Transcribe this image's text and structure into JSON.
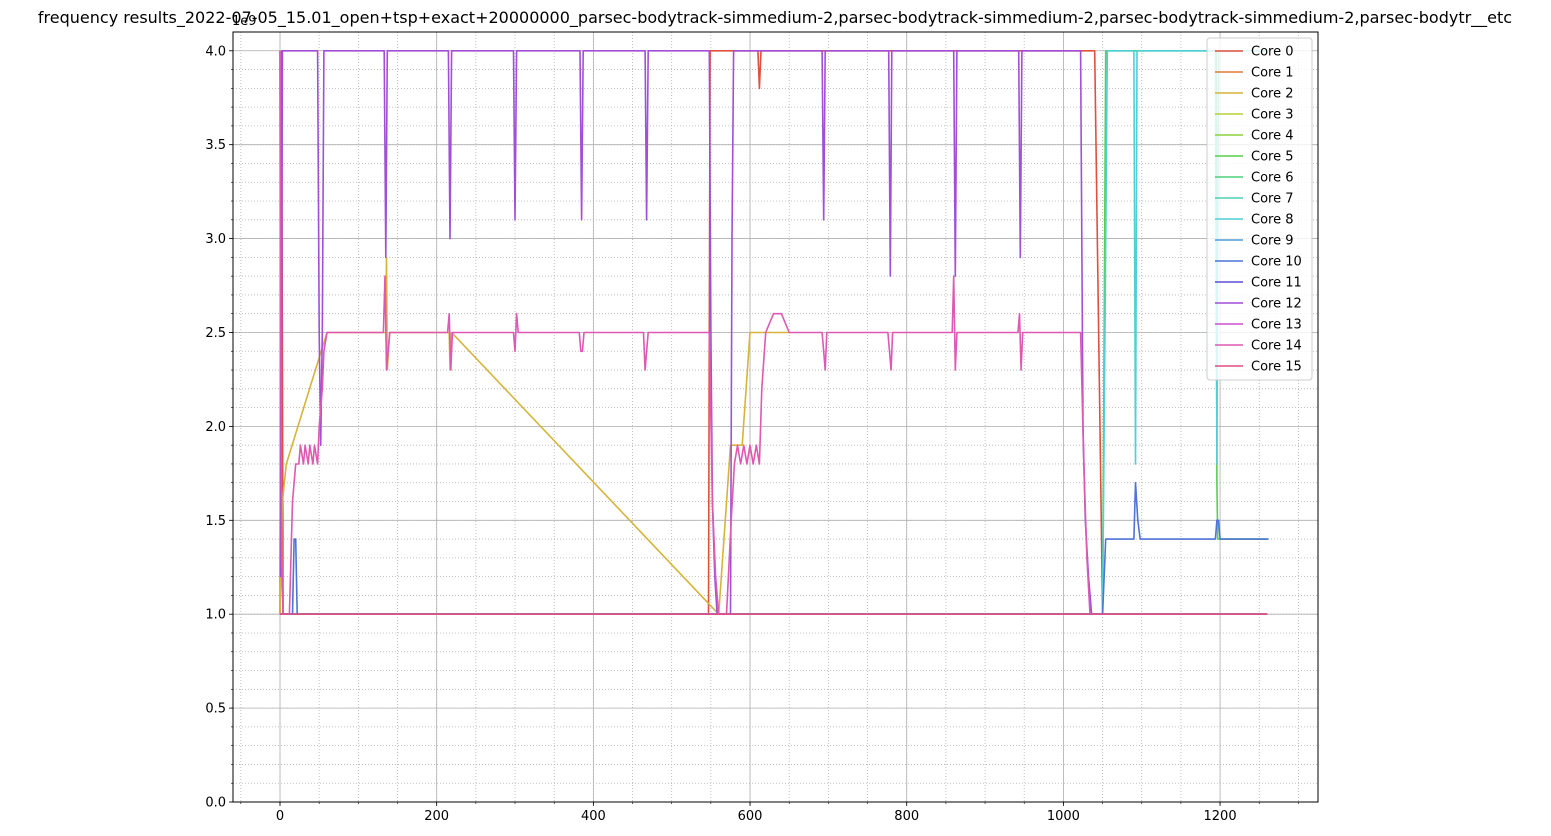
{
  "chart_data": {
    "type": "line",
    "title": "frequency results_2022-07-05_15.01_open+tsp+exact+20000000_parsec-bodytrack-simmedium-2,parsec-bodytrack-simmedium-2,parsec-bodytrack-simmedium-2,parsec-bodytr__etc",
    "xlabel": "",
    "ylabel": "",
    "y_offset_text": "1e9",
    "xlim": [
      -60,
      1325
    ],
    "ylim": [
      0.0,
      4.1
    ],
    "x_ticks": [
      0,
      200,
      400,
      600,
      800,
      1000,
      1200
    ],
    "x_tick_labels": [
      "0",
      "200",
      "400",
      "600",
      "800",
      "1000",
      "1200"
    ],
    "y_ticks": [
      0.0,
      0.5,
      1.0,
      1.5,
      2.0,
      2.5,
      3.0,
      3.5,
      4.0
    ],
    "y_tick_labels": [
      "0.0",
      "0.5",
      "1.0",
      "1.5",
      "2.0",
      "2.5",
      "3.0",
      "3.5",
      "4.0"
    ],
    "grid": "major solid, minor dotted",
    "legend_position": "top-right",
    "series": [
      {
        "name": "Core 0",
        "color": "#e04f3f",
        "x": [
          0,
          2,
          4,
          547,
          549,
          560,
          580,
          610,
          612,
          614,
          1040,
          1050,
          1260
        ],
        "y": [
          1.0,
          4.0,
          1.0,
          1.0,
          4.0,
          4.0,
          4.0,
          4.0,
          3.8,
          4.0,
          4.0,
          1.0,
          1.0
        ]
      },
      {
        "name": "Core 1",
        "color": "#e07a3f",
        "x": [
          0,
          2,
          4,
          1260
        ],
        "y": [
          1.0,
          1.6,
          1.0,
          1.0
        ]
      },
      {
        "name": "Core 2",
        "color": "#d6b43a",
        "x": [
          0,
          3,
          8,
          60,
          135,
          136,
          137,
          140,
          216,
          217,
          218,
          219,
          560,
          575,
          590,
          600,
          610,
          620,
          630,
          650
        ],
        "y": [
          1.0,
          1.6,
          1.8,
          2.5,
          2.5,
          2.9,
          2.3,
          2.5,
          2.5,
          2.3,
          2.4,
          2.5,
          1.0,
          1.9,
          1.9,
          2.5,
          2.5,
          2.5,
          2.5,
          2.5
        ]
      },
      {
        "name": "Core 3",
        "color": "#b7d13a",
        "x": [
          0,
          1260
        ],
        "y": [
          1.0,
          1.0
        ]
      },
      {
        "name": "Core 4",
        "color": "#8ed13f",
        "x": [
          0,
          1260
        ],
        "y": [
          1.0,
          1.0
        ]
      },
      {
        "name": "Core 5",
        "color": "#55d14a",
        "x": [
          0,
          1050,
          1054,
          1056,
          1195,
          1196,
          1197,
          1198,
          1260
        ],
        "y": [
          1.0,
          1.0,
          4.0,
          4.0,
          4.0,
          1.7,
          1.4,
          1.4,
          1.4
        ]
      },
      {
        "name": "Core 6",
        "color": "#4fd17a",
        "x": [
          0,
          1260
        ],
        "y": [
          1.0,
          1.0
        ]
      },
      {
        "name": "Core 7",
        "color": "#4fd1b0",
        "x": [
          0,
          1260
        ],
        "y": [
          1.0,
          1.0
        ]
      },
      {
        "name": "Core 8",
        "color": "#4fcfd6",
        "x": [
          0,
          1050,
          1056,
          1090,
          1092,
          1094,
          1194,
          1196,
          1198,
          1260
        ],
        "y": [
          1.0,
          1.0,
          4.0,
          4.0,
          1.8,
          4.0,
          4.0,
          1.8,
          4.0,
          4.0
        ]
      },
      {
        "name": "Core 9",
        "color": "#4f9bd6",
        "x": [
          0,
          1260
        ],
        "y": [
          1.0,
          1.0
        ]
      },
      {
        "name": "Core 10",
        "color": "#4f73d6",
        "x": [
          0,
          16,
          18,
          20,
          22,
          1050,
          1054,
          1090,
          1092,
          1095,
          1098,
          1194,
          1196,
          1198,
          1200,
          1262
        ],
        "y": [
          1.0,
          1.0,
          1.4,
          1.4,
          1.0,
          1.0,
          1.4,
          1.4,
          1.7,
          1.5,
          1.4,
          1.4,
          1.5,
          1.5,
          1.4,
          1.4
        ]
      },
      {
        "name": "Core 11",
        "color": "#5b4fd6",
        "x": [
          0,
          1260
        ],
        "y": [
          1.0,
          1.0
        ]
      },
      {
        "name": "Core 12",
        "color": "#a04fd6",
        "x": [
          0,
          1,
          3,
          48,
          50,
          52,
          54,
          56,
          58,
          133,
          135,
          137,
          139,
          215,
          217,
          219,
          298,
          300,
          302,
          383,
          385,
          387,
          466,
          468,
          470,
          548,
          550,
          552,
          555,
          558,
          560,
          575,
          577,
          579,
          692,
          694,
          696,
          777,
          779,
          781,
          860,
          862,
          864,
          943,
          945,
          947,
          1022,
          1025,
          1028,
          1032,
          1036,
          1040
        ],
        "y": [
          4.0,
          1.2,
          4.0,
          4.0,
          2.5,
          1.9,
          2.5,
          4.0,
          4.0,
          4.0,
          2.9,
          4.0,
          4.0,
          4.0,
          3.0,
          4.0,
          4.0,
          3.1,
          4.0,
          4.0,
          3.1,
          4.0,
          4.0,
          3.1,
          4.0,
          4.0,
          2.5,
          1.6,
          1.2,
          1.0,
          1.0,
          1.0,
          3.0,
          4.0,
          4.0,
          3.1,
          4.0,
          4.0,
          2.8,
          4.0,
          4.0,
          2.8,
          4.0,
          4.0,
          2.9,
          4.0,
          4.0,
          2.0,
          1.5,
          1.2,
          1.0,
          1.0
        ]
      },
      {
        "name": "Core 13",
        "color": "#d14fcf",
        "x": [
          0,
          1260
        ],
        "y": [
          1.0,
          1.0
        ]
      },
      {
        "name": "Core 14",
        "color": "#dd59b2",
        "x": [
          0,
          2,
          4,
          8,
          12,
          16,
          20,
          24,
          26,
          30,
          32,
          36,
          38,
          42,
          44,
          48,
          50,
          54,
          56,
          60,
          132,
          134,
          136,
          138,
          140,
          214,
          216,
          218,
          220,
          298,
          300,
          302,
          304,
          382,
          384,
          386,
          388,
          464,
          466,
          468,
          470,
          548,
          552,
          556,
          560,
          570,
          576,
          580,
          584,
          588,
          592,
          596,
          600,
          604,
          608,
          612,
          615,
          620,
          630,
          640,
          650,
          692,
          694,
          696,
          698,
          776,
          778,
          780,
          782,
          858,
          860,
          862,
          864,
          942,
          944,
          946,
          948,
          1022,
          1026,
          1030,
          1034,
          1038,
          1040,
          1260
        ],
        "y": [
          4.0,
          1.3,
          1.0,
          1.0,
          1.0,
          1.6,
          1.8,
          1.8,
          1.9,
          1.8,
          1.9,
          1.8,
          1.9,
          1.8,
          1.9,
          1.8,
          2.0,
          2.2,
          2.4,
          2.5,
          2.5,
          2.8,
          2.3,
          2.4,
          2.5,
          2.5,
          2.6,
          2.3,
          2.5,
          2.5,
          2.4,
          2.6,
          2.5,
          2.5,
          2.4,
          2.4,
          2.5,
          2.5,
          2.3,
          2.4,
          2.5,
          2.5,
          1.6,
          1.2,
          1.0,
          1.0,
          1.5,
          1.8,
          1.9,
          1.8,
          1.9,
          1.8,
          1.9,
          1.8,
          1.9,
          1.8,
          2.2,
          2.5,
          2.6,
          2.6,
          2.5,
          2.5,
          2.4,
          2.3,
          2.5,
          2.5,
          2.4,
          2.3,
          2.5,
          2.5,
          2.8,
          2.3,
          2.5,
          2.5,
          2.6,
          2.3,
          2.5,
          2.5,
          1.8,
          1.3,
          1.0,
          1.0,
          1.0,
          1.0
        ]
      },
      {
        "name": "Core 15",
        "color": "#e04f82",
        "x": [
          0,
          1260
        ],
        "y": [
          1.0,
          1.0
        ]
      }
    ]
  }
}
